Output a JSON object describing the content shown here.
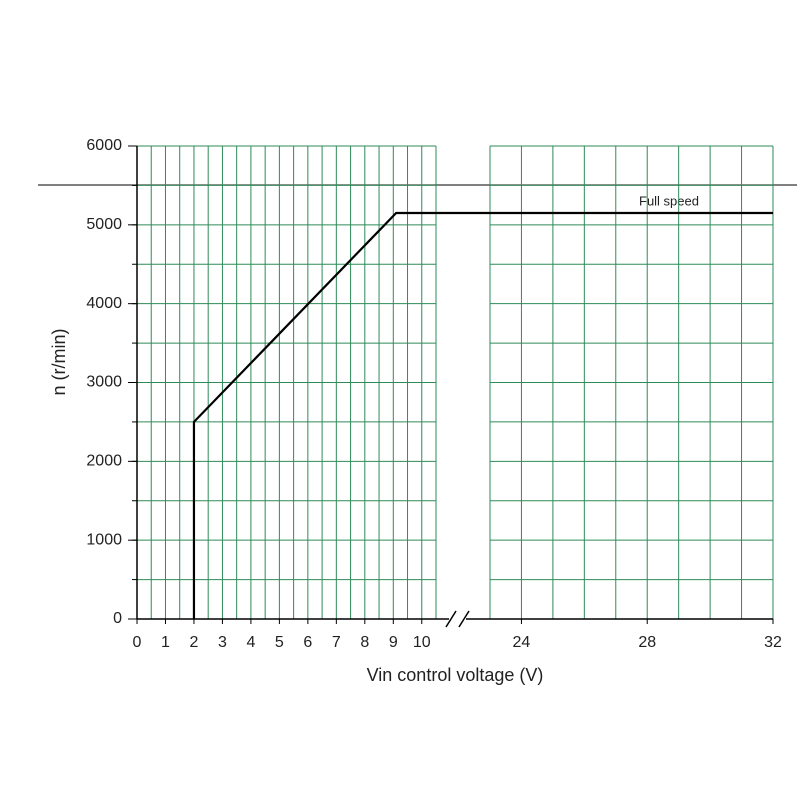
{
  "chart_data": {
    "type": "line",
    "xlabel": "Vin control voltage (V)",
    "ylabel": "n (r/min)",
    "annotation": "Full speed",
    "x": [
      2,
      2,
      9.1,
      32
    ],
    "series": [
      {
        "color": "#000000",
        "values": [
          0,
          2500,
          5150,
          5150
        ]
      }
    ],
    "x_segments": [
      {
        "xlim": [
          0,
          10.5
        ],
        "xticks": [
          0,
          1,
          2,
          3,
          4,
          5,
          6,
          7,
          8,
          9,
          10
        ],
        "xgrid": [
          0.5,
          1,
          1.5,
          2,
          2.5,
          3,
          3.5,
          4,
          4.5,
          5,
          5.5,
          6,
          6.5,
          7,
          7.5,
          8,
          8.5,
          9,
          9.5,
          10,
          10.5
        ]
      },
      {
        "xlim": [
          23,
          32
        ],
        "xticks": [
          24,
          28,
          32
        ],
        "xgrid": [
          23,
          24,
          25,
          26,
          27,
          28,
          29,
          30,
          31,
          32
        ]
      }
    ],
    "ylim": [
      0,
      6000
    ],
    "yticks": [
      0,
      1000,
      2000,
      3000,
      4000,
      5000,
      6000
    ],
    "ygrid": [
      500,
      1000,
      1500,
      2000,
      2500,
      3000,
      3500,
      4000,
      4500,
      5000,
      5500,
      6000
    ],
    "grid_color": "#2e8b57",
    "grid": true
  }
}
